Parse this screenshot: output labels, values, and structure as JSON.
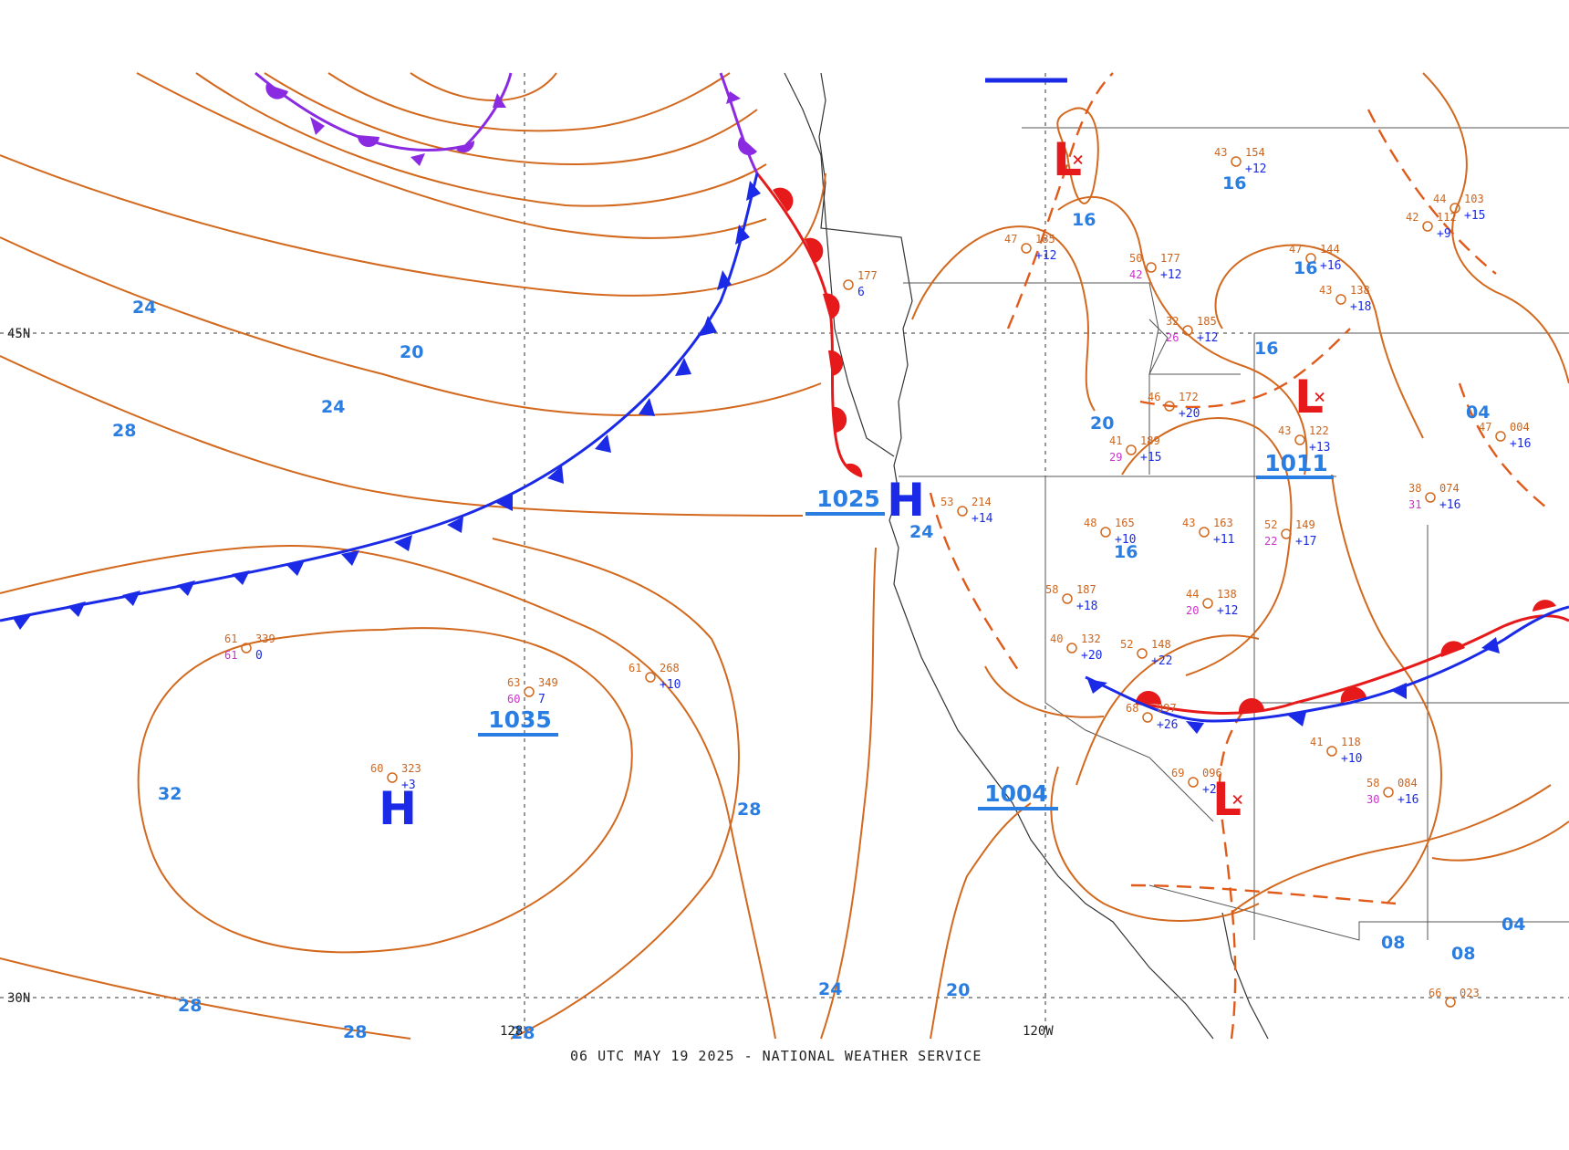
{
  "footer": "06 UTC MAY 19 2025 - NATIONAL WEATHER SERVICE",
  "gridlabels": {
    "lat45": "45N",
    "lat30": "30N",
    "lon120": "120W",
    "lon128": "128"
  },
  "centers": {
    "high_main": {
      "symbol": "H",
      "pressure": "1035"
    },
    "high_coast": {
      "symbol": "H",
      "pressure": "1025"
    },
    "low_sw": {
      "symbol": "L",
      "pressure": "1004"
    },
    "low_central": {
      "symbol": "L",
      "pressure": "1011"
    },
    "low_north": {
      "symbol": "L"
    }
  },
  "isobar_labels": [
    "24",
    "20",
    "24",
    "28",
    "32",
    "28",
    "28",
    "28",
    "28",
    "24",
    "20",
    "24",
    "16",
    "16",
    "16",
    "16",
    "20",
    "16",
    "04",
    "08",
    "08",
    "04"
  ],
  "stations": [
    {
      "t": "61",
      "p": "339",
      "d": "61",
      "c": "0"
    },
    {
      "t": "63",
      "p": "349",
      "d": "60",
      "c": "7"
    },
    {
      "t": "61",
      "p": "268",
      "d": "",
      "c": "+10"
    },
    {
      "t": "60",
      "p": "323",
      "d": "",
      "c": "+3"
    },
    {
      "t": "",
      "p": "177",
      "d": "",
      "c": "6"
    },
    {
      "t": "43",
      "p": "154",
      "d": "",
      "c": "+12"
    },
    {
      "t": "47",
      "p": "185",
      "d": "",
      "c": "+12"
    },
    {
      "t": "50",
      "p": "177",
      "d": "42",
      "c": "+12"
    },
    {
      "t": "32",
      "p": "185",
      "d": "26",
      "c": "+12"
    },
    {
      "t": "46",
      "p": "172",
      "d": "",
      "c": "+20"
    },
    {
      "t": "43",
      "p": "122",
      "d": "",
      "c": "+13"
    },
    {
      "t": "41",
      "p": "189",
      "d": "29",
      "c": "+15"
    },
    {
      "t": "53",
      "p": "214",
      "d": "",
      "c": "+14"
    },
    {
      "t": "48",
      "p": "165",
      "d": "",
      "c": "+10"
    },
    {
      "t": "43",
      "p": "163",
      "d": "",
      "c": "+11"
    },
    {
      "t": "52",
      "p": "149",
      "d": "22",
      "c": "+17"
    },
    {
      "t": "58",
      "p": "187",
      "d": "",
      "c": "+18"
    },
    {
      "t": "44",
      "p": "138",
      "d": "20",
      "c": "+12"
    },
    {
      "t": "52",
      "p": "148",
      "d": "",
      "c": "+22"
    },
    {
      "t": "40",
      "p": "132",
      "d": "",
      "c": "+20"
    },
    {
      "t": "68",
      "p": "097",
      "d": "",
      "c": "+26"
    },
    {
      "t": "69",
      "p": "096",
      "d": "",
      "c": "+22"
    },
    {
      "t": "41",
      "p": "118",
      "d": "",
      "c": "+10"
    },
    {
      "t": "58",
      "p": "084",
      "d": "30",
      "c": "+16"
    },
    {
      "t": "38",
      "p": "074",
      "d": "31",
      "c": "+16"
    },
    {
      "t": "47",
      "p": "004",
      "d": "",
      "c": "+16"
    },
    {
      "t": "44",
      "p": "103",
      "d": "",
      "c": "+15"
    },
    {
      "t": "42",
      "p": "112",
      "d": "",
      "c": "+9"
    },
    {
      "t": "43",
      "p": "138",
      "d": "",
      "c": "+18"
    },
    {
      "t": "47",
      "p": "144",
      "d": "",
      "c": "+16"
    },
    {
      "t": "66",
      "p": "023",
      "d": "",
      "c": ""
    }
  ]
}
